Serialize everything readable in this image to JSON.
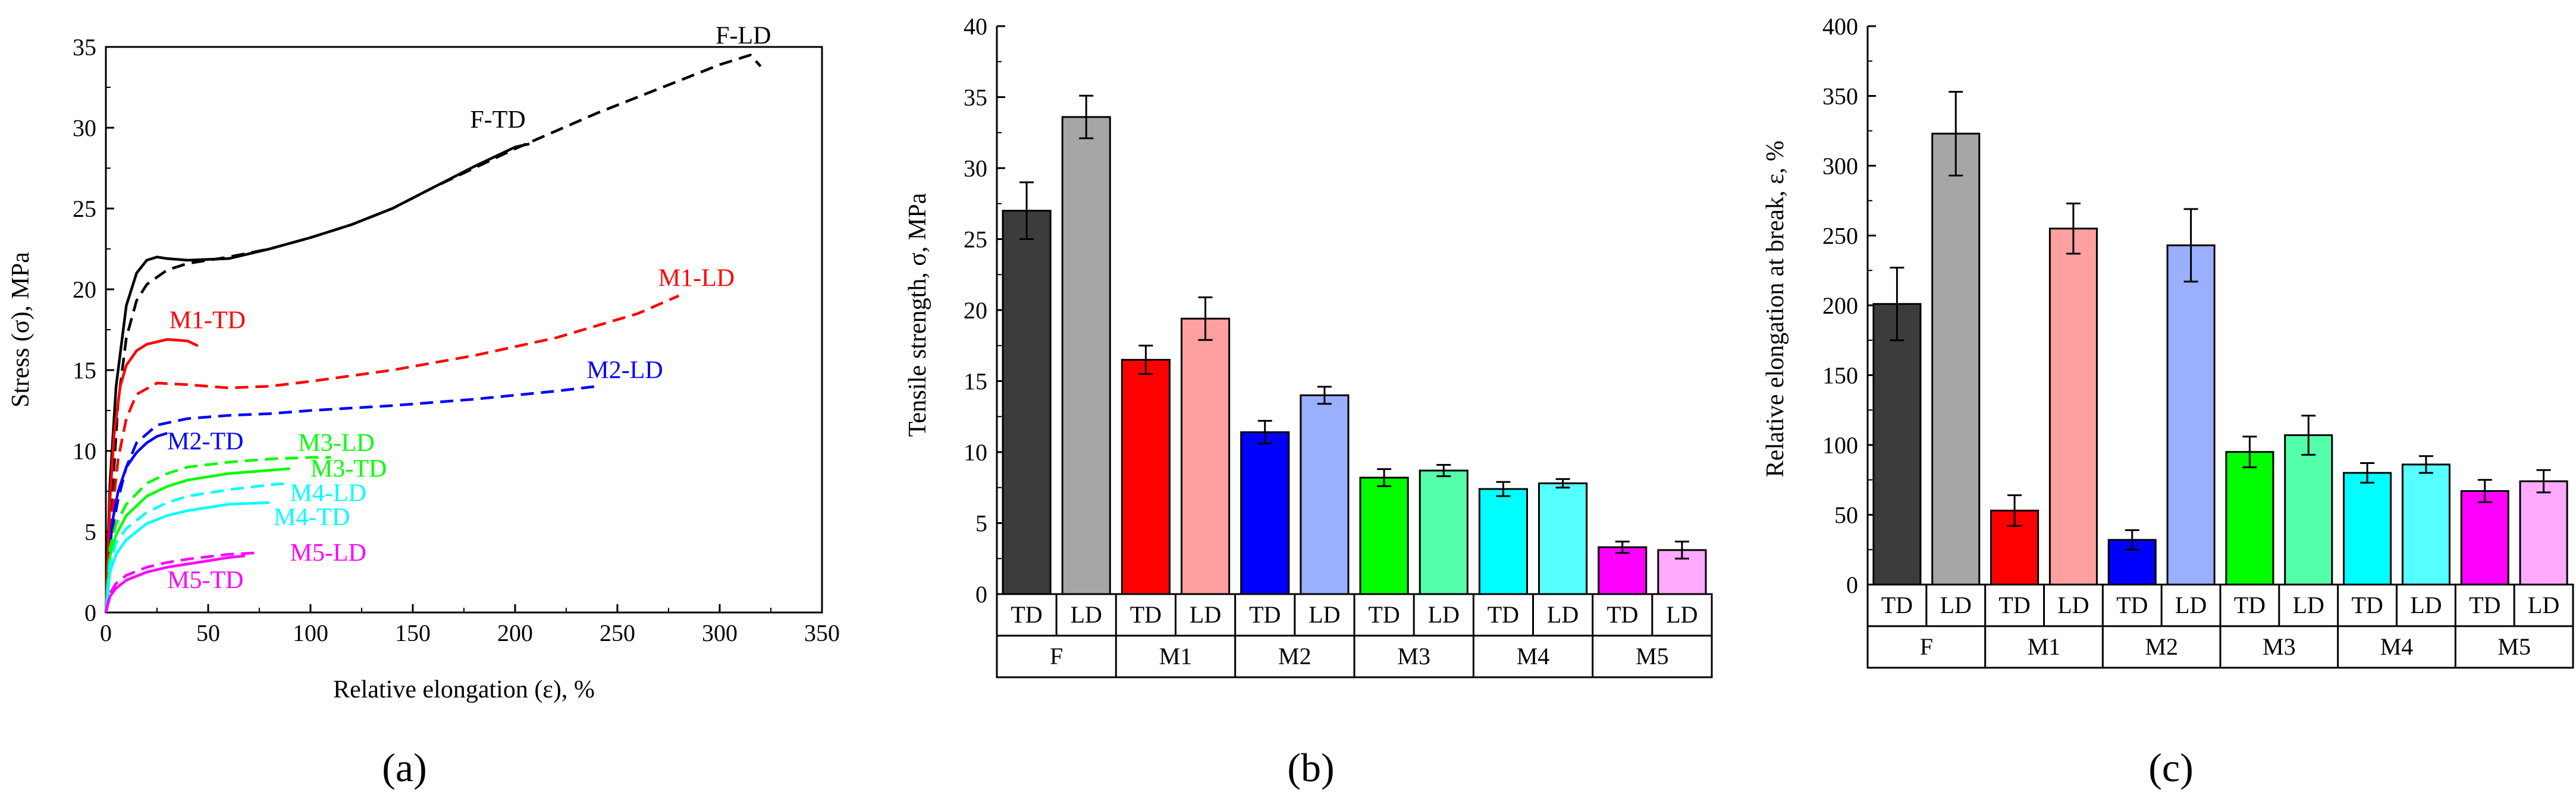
{
  "chart_data": [
    {
      "type": "line",
      "panel_label": "(a)",
      "xlabel": "Relative elongation (ε), %",
      "ylabel": "Stress (σ), MPa",
      "xlim": [
        0,
        350
      ],
      "ylim": [
        0,
        35
      ],
      "xticks": [
        "0",
        "50",
        "100",
        "150",
        "200",
        "250",
        "300",
        "350"
      ],
      "yticks": [
        "0",
        "5",
        "10",
        "15",
        "20",
        "25",
        "30",
        "35"
      ],
      "series": [
        {
          "name": "F-TD",
          "style": "solid",
          "color": "#000000",
          "x": [
            0,
            2,
            5,
            10,
            15,
            20,
            25,
            30,
            40,
            60,
            80,
            100,
            120,
            140,
            160,
            180,
            200,
            207
          ],
          "y": [
            0,
            8,
            14,
            19,
            21,
            21.8,
            22,
            21.9,
            21.8,
            21.9,
            22.5,
            23.2,
            24,
            25,
            26.3,
            27.6,
            28.8,
            29
          ]
        },
        {
          "name": "F-LD",
          "style": "dashed",
          "color": "#000000",
          "x": [
            0,
            3,
            6,
            10,
            15,
            20,
            30,
            40,
            60,
            80,
            100,
            120,
            140,
            160,
            180,
            200,
            220,
            240,
            260,
            280,
            300,
            315,
            320
          ],
          "y": [
            0,
            7,
            13,
            17,
            19.3,
            20.3,
            21.2,
            21.6,
            22,
            22.5,
            23.2,
            24,
            25,
            26.3,
            27.5,
            28.7,
            29.8,
            30.9,
            31.9,
            32.9,
            33.9,
            34.5,
            33.8
          ]
        },
        {
          "name": "M1-TD",
          "style": "solid",
          "color": "#ff0000",
          "x": [
            0,
            2,
            4,
            7,
            10,
            15,
            20,
            30,
            40,
            45
          ],
          "y": [
            0,
            7,
            11,
            14,
            15.3,
            16.2,
            16.6,
            16.9,
            16.8,
            16.5
          ]
        },
        {
          "name": "M1-LD",
          "style": "dashed",
          "color": "#ff0000",
          "x": [
            0,
            3,
            6,
            10,
            15,
            25,
            40,
            60,
            80,
            100,
            140,
            180,
            220,
            260,
            280
          ],
          "y": [
            0,
            6,
            9.5,
            12,
            13.5,
            14.2,
            14.1,
            13.9,
            14,
            14.3,
            15,
            15.9,
            17,
            18.5,
            19.6
          ]
        },
        {
          "name": "M2-TD",
          "style": "solid",
          "color": "#0000ff",
          "x": [
            0,
            3,
            6,
            10,
            15,
            20,
            25,
            30
          ],
          "y": [
            0,
            5.5,
            7.5,
            9,
            9.9,
            10.5,
            10.9,
            11.1
          ]
        },
        {
          "name": "M2-LD",
          "style": "dashed",
          "color": "#0000ff",
          "x": [
            0,
            3,
            6,
            10,
            15,
            25,
            40,
            60,
            80,
            100,
            140,
            180,
            220,
            240
          ],
          "y": [
            0,
            5,
            7,
            9,
            10.5,
            11.6,
            12,
            12.2,
            12.3,
            12.5,
            12.8,
            13.2,
            13.7,
            14
          ]
        },
        {
          "name": "M3-LD",
          "style": "dashed",
          "color": "#00ff00",
          "x": [
            0,
            2,
            5,
            10,
            20,
            30,
            40,
            60,
            80,
            100,
            110
          ],
          "y": [
            0,
            4,
            5.5,
            6.7,
            8,
            8.6,
            9,
            9.3,
            9.5,
            9.6,
            9.6
          ]
        },
        {
          "name": "M3-TD",
          "style": "solid",
          "color": "#00ff00",
          "x": [
            0,
            2,
            5,
            10,
            20,
            30,
            40,
            60,
            80,
            90
          ],
          "y": [
            0,
            3.5,
            4.8,
            6,
            7.2,
            7.8,
            8.2,
            8.6,
            8.8,
            8.9
          ]
        },
        {
          "name": "M4-LD",
          "style": "dashed",
          "color": "#00ffff",
          "x": [
            0,
            2,
            5,
            10,
            20,
            30,
            40,
            60,
            80,
            90
          ],
          "y": [
            0,
            3,
            4.3,
            5.2,
            6.2,
            6.8,
            7.2,
            7.6,
            7.9,
            8
          ]
        },
        {
          "name": "M4-TD",
          "style": "solid",
          "color": "#00ffff",
          "x": [
            0,
            2,
            5,
            10,
            20,
            30,
            40,
            60,
            80
          ],
          "y": [
            0,
            2.5,
            3.6,
            4.5,
            5.5,
            6,
            6.3,
            6.7,
            6.8
          ]
        },
        {
          "name": "M5-LD",
          "style": "dashed",
          "color": "#ff00ff",
          "x": [
            0,
            2,
            5,
            10,
            20,
            30,
            40,
            60,
            75
          ],
          "y": [
            0,
            1.2,
            1.8,
            2.3,
            2.8,
            3.1,
            3.3,
            3.6,
            3.7
          ]
        },
        {
          "name": "M5-TD",
          "style": "solid",
          "color": "#ff00ff",
          "x": [
            0,
            2,
            5,
            10,
            20,
            30,
            40,
            50,
            60,
            68
          ],
          "y": [
            0,
            1,
            1.5,
            2,
            2.5,
            2.8,
            3,
            3.2,
            3.4,
            3.5
          ]
        }
      ],
      "curve_labels": [
        {
          "text": "F-LD",
          "color": "#000000",
          "x": 298,
          "y": 35.2
        },
        {
          "text": "F-TD",
          "color": "#000000",
          "x": 178,
          "y": 30
        },
        {
          "text": "M1-TD",
          "color": "#ff0000",
          "x": 31,
          "y": 17.6
        },
        {
          "text": "M1-LD",
          "color": "#ff0000",
          "x": 270,
          "y": 20.2
        },
        {
          "text": "M2-LD",
          "color": "#0000ff",
          "x": 235,
          "y": 14.5
        },
        {
          "text": "M2-TD",
          "color": "#0000ff",
          "x": 30,
          "y": 10.1
        },
        {
          "text": "M3-LD",
          "color": "#00ff00",
          "x": 94,
          "y": 10
        },
        {
          "text": "M3-TD",
          "color": "#00ff00",
          "x": 100,
          "y": 8.4
        },
        {
          "text": "M4-LD",
          "color": "#00ffff",
          "x": 90,
          "y": 6.9
        },
        {
          "text": "M4-TD",
          "color": "#00ffff",
          "x": 82,
          "y": 5.4
        },
        {
          "text": "M5-LD",
          "color": "#ff00ff",
          "x": 90,
          "y": 3.2
        },
        {
          "text": "M5-TD",
          "color": "#ff00ff",
          "x": 30,
          "y": 1.5
        }
      ]
    },
    {
      "type": "bar",
      "panel_label": "(b)",
      "ylabel": "Tensile strength, σ, MPa",
      "ylim": [
        0,
        40
      ],
      "yticks": [
        "0",
        "5",
        "10",
        "15",
        "20",
        "25",
        "30",
        "35",
        "40"
      ],
      "groups": [
        "F",
        "M1",
        "M2",
        "M3",
        "M4",
        "M5"
      ],
      "categories": [
        "TD",
        "LD",
        "TD",
        "LD",
        "TD",
        "LD",
        "TD",
        "LD",
        "TD",
        "LD",
        "TD",
        "LD"
      ],
      "values": [
        27,
        33.6,
        16.5,
        19.4,
        11.4,
        14,
        8.2,
        8.7,
        7.4,
        7.8,
        3.3,
        3.1
      ],
      "errors": [
        2,
        1.5,
        1,
        1.5,
        0.8,
        0.6,
        0.6,
        0.4,
        0.5,
        0.3,
        0.4,
        0.6
      ],
      "colors": [
        "#3c3c3c",
        "#a6a6a6",
        "#ff0000",
        "#ffa0a0",
        "#0000ff",
        "#9ab0ff",
        "#00ff00",
        "#55ffaa",
        "#00ffff",
        "#55ffff",
        "#ff00ff",
        "#ffaaff"
      ]
    },
    {
      "type": "bar",
      "panel_label": "(c)",
      "ylabel": "Relative elongation at break, ε, %",
      "ylim": [
        0,
        400
      ],
      "yticks": [
        "0",
        "50",
        "100",
        "150",
        "200",
        "250",
        "300",
        "350",
        "400"
      ],
      "groups": [
        "F",
        "M1",
        "M2",
        "M3",
        "M4",
        "M5"
      ],
      "categories": [
        "TD",
        "LD",
        "TD",
        "LD",
        "TD",
        "LD",
        "TD",
        "LD",
        "TD",
        "LD",
        "TD",
        "LD"
      ],
      "values": [
        201,
        323,
        53,
        255,
        32,
        243,
        95,
        107,
        80,
        86,
        67,
        74
      ],
      "errors": [
        26,
        30,
        11,
        18,
        7,
        26,
        11,
        14,
        7,
        6,
        8,
        8
      ],
      "colors": [
        "#3c3c3c",
        "#a6a6a6",
        "#ff0000",
        "#ffa0a0",
        "#0000ff",
        "#9ab0ff",
        "#00ff00",
        "#55ffaa",
        "#00ffff",
        "#55ffff",
        "#ff00ff",
        "#ffaaff"
      ]
    }
  ]
}
